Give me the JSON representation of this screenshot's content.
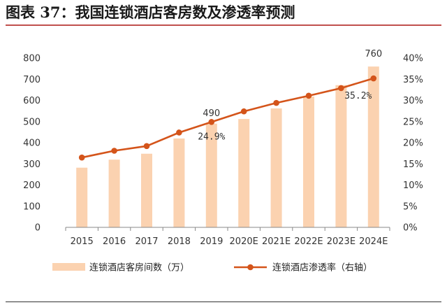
{
  "figure": {
    "title": "图表 37：我国连锁酒店客房数及渗透率预测"
  },
  "chart_data": {
    "type": "bar",
    "categories": [
      "2015",
      "2016",
      "2017",
      "2018",
      "2019",
      "2020E",
      "2021E",
      "2022E",
      "2023E",
      "2024E"
    ],
    "series": [
      {
        "name": "连锁酒店客房间数（万）",
        "kind": "bar",
        "axis": "left",
        "values": [
          282,
          320,
          348,
          420,
          490,
          512,
          562,
          618,
          672,
          760
        ]
      },
      {
        "name": "连锁酒店渗透率（右轴）",
        "kind": "line",
        "axis": "right",
        "values": [
          16.5,
          18.1,
          19.2,
          22.4,
          24.9,
          27.4,
          29.4,
          31.1,
          32.9,
          35.2
        ]
      }
    ],
    "y_left": {
      "ylim": [
        0,
        800
      ],
      "ticks": [
        0,
        100,
        200,
        300,
        400,
        500,
        600,
        700,
        800
      ]
    },
    "y_right": {
      "ylim": [
        0,
        40
      ],
      "ticks": [
        "0%",
        "5%",
        "10%",
        "15%",
        "20%",
        "25%",
        "30%",
        "35%",
        "40%"
      ]
    },
    "annotations": [
      {
        "series": 0,
        "index": 4,
        "text": "490"
      },
      {
        "series": 0,
        "index": 9,
        "text": "760"
      },
      {
        "series": 1,
        "index": 4,
        "text": "24.9%"
      },
      {
        "series": 1,
        "index": 9,
        "text": "35.2%"
      }
    ],
    "legend": "bottom",
    "colors": {
      "bar": "#fbd2b0",
      "line": "#d4541a"
    }
  }
}
